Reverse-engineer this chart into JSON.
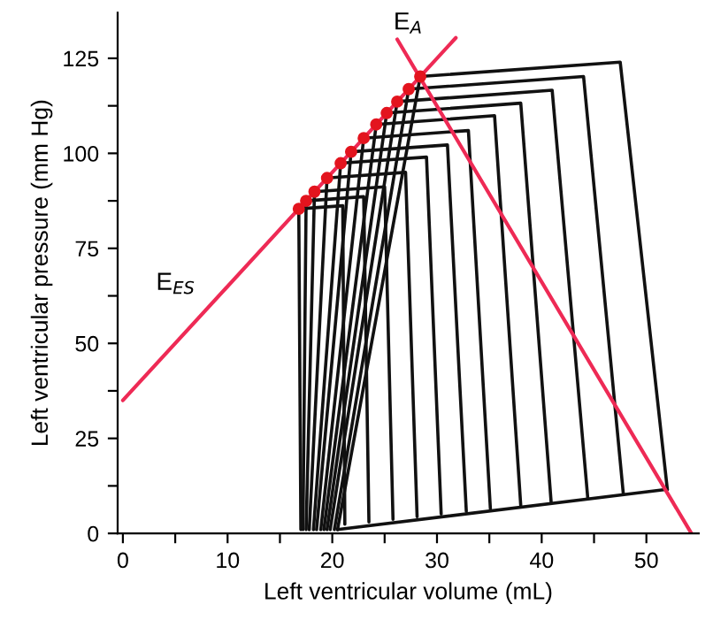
{
  "chart_data": {
    "type": "line",
    "xlabel": "Left ventricular volume (mL)",
    "ylabel": "Left ventricular pressure (mm Hg)",
    "xlim": [
      -0.5,
      55
    ],
    "ylim": [
      0,
      137
    ],
    "xticks": [
      0,
      {
        "value": 5,
        "label": null
      },
      10,
      {
        "value": 15,
        "label": null
      },
      20,
      {
        "value": 25,
        "label": null
      },
      30,
      {
        "value": 35,
        "label": null
      },
      40,
      {
        "value": 45,
        "label": null
      },
      50
    ],
    "yticks": [
      0,
      {
        "value": 12.5,
        "label": null
      },
      25,
      {
        "value": 37.5,
        "label": null
      },
      50,
      {
        "value": 62.5,
        "label": null
      },
      75,
      {
        "value": 87.5,
        "label": null
      },
      100,
      {
        "value": 112.5,
        "label": null
      },
      125
    ],
    "grid": false,
    "legend": false,
    "marker": "none",
    "line_style": "solid",
    "series": [
      {
        "color": "#111111",
        "x": [
          17,
          16.8,
          21,
          21.2
        ],
        "values": [
          1,
          85.4,
          86.2,
          2.4
        ]
      },
      {
        "color": "#111111",
        "x": [
          17.2,
          17.5,
          23,
          23.5
        ],
        "values": [
          1,
          87.5,
          88.6,
          3
        ]
      },
      {
        "color": "#111111",
        "x": [
          17.5,
          18.3,
          25,
          25.8
        ],
        "values": [
          1,
          89.9,
          91.2,
          3.7
        ]
      },
      {
        "color": "#111111",
        "x": [
          17.8,
          19.5,
          27,
          28.1
        ],
        "values": [
          1,
          93.5,
          95,
          4.4
        ]
      },
      {
        "color": "#111111",
        "x": [
          18.2,
          20.8,
          29,
          30.4
        ],
        "values": [
          1,
          97.4,
          99,
          5.1
        ]
      },
      {
        "color": "#111111",
        "x": [
          18.5,
          21.8,
          31,
          32.8
        ],
        "values": [
          1,
          100.4,
          102.2,
          5.8
        ]
      },
      {
        "color": "#111111",
        "x": [
          18.9,
          23,
          33,
          35.1
        ],
        "values": [
          1,
          104,
          106,
          6.5
        ]
      },
      {
        "color": "#111111",
        "x": [
          19.2,
          24.2,
          35.5,
          38
        ],
        "values": [
          1,
          107.6,
          109.9,
          7.4
        ]
      },
      {
        "color": "#111111",
        "x": [
          19.5,
          25.2,
          38,
          40.9
        ],
        "values": [
          1,
          110.6,
          113.2,
          8.3
        ]
      },
      {
        "color": "#111111",
        "x": [
          19.8,
          26.2,
          41,
          44.4
        ],
        "values": [
          1,
          113.6,
          116.6,
          9.3
        ]
      },
      {
        "color": "#111111",
        "x": [
          20.2,
          27.3,
          44,
          47.8
        ],
        "values": [
          1,
          116.9,
          120.2,
          10.3
        ]
      },
      {
        "color": "#111111",
        "x": [
          20.5,
          28.4,
          47.5,
          52
        ],
        "values": [
          1,
          120.2,
          124,
          11.6
        ]
      },
      {
        "color": "#111111",
        "x": [
          20.5,
          52
        ],
        "values": [
          1,
          11.6
        ]
      },
      {
        "type": "line",
        "color": "#ee2a55",
        "x": [
          0,
          31.8
        ],
        "values": [
          35,
          130.4
        ]
      },
      {
        "type": "line",
        "color": "#ee2a55",
        "x": [
          26.2,
          54.3
        ],
        "values": [
          130,
          0
        ]
      },
      {
        "type": "scatter",
        "marker": "circle",
        "color": "#e3141e",
        "x": [
          16.8,
          17.5,
          18.3,
          19.5,
          20.8,
          21.8,
          23.0,
          24.2,
          25.2,
          26.2,
          27.3,
          28.4
        ],
        "values": [
          85.4,
          87.5,
          89.9,
          93.5,
          97.4,
          100.4,
          104,
          107.6,
          110.6,
          113.6,
          116.9,
          120.2
        ]
      }
    ],
    "annotations": [
      "E$_{ES}$",
      "E$_{A}$"
    ]
  }
}
